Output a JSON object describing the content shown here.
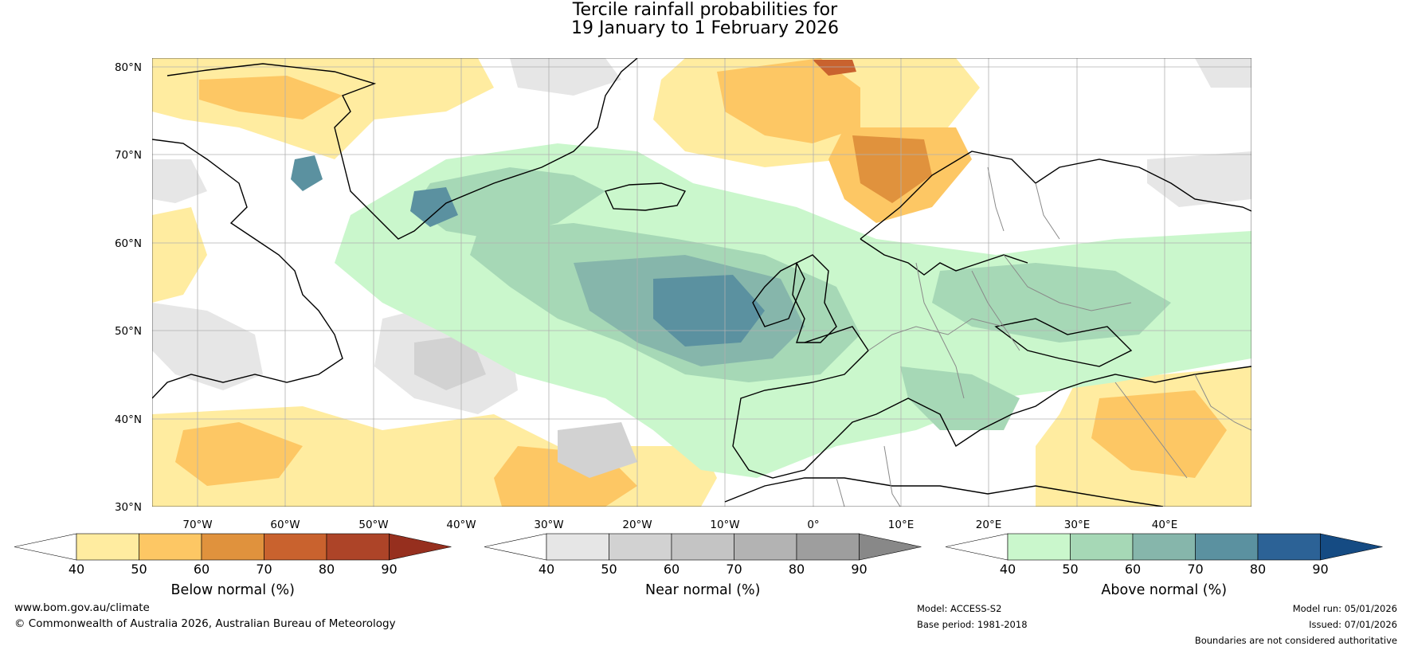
{
  "title": {
    "line1": "Tercile rainfall probabilities for",
    "line2": "19 January to 1 February 2026"
  },
  "map": {
    "lat_labels": [
      "80°N",
      "70°N",
      "60°N",
      "50°N",
      "40°N",
      "30°N"
    ],
    "lon_labels": [
      "70°W",
      "60°W",
      "50°W",
      "40°W",
      "30°W",
      "20°W",
      "10°W",
      "0°",
      "10°E",
      "20°E",
      "30°E",
      "40°E"
    ]
  },
  "colorbars": [
    {
      "label": "Below normal (%)",
      "ticks": [
        "40",
        "50",
        "60",
        "70",
        "80",
        "90"
      ],
      "colors": [
        "#ffffff",
        "#ffeca0",
        "#fdc764",
        "#e0923d",
        "#c9622e",
        "#ad4428",
        "#962f1e"
      ]
    },
    {
      "label": "Near normal (%)",
      "ticks": [
        "40",
        "50",
        "60",
        "70",
        "80",
        "90"
      ],
      "colors": [
        "#ffffff",
        "#e6e6e6",
        "#d2d2d2",
        "#c4c4c4",
        "#b3b3b3",
        "#9e9e9e",
        "#888888"
      ]
    },
    {
      "label": "Above normal (%)",
      "ticks": [
        "40",
        "50",
        "60",
        "70",
        "80",
        "90"
      ],
      "colors": [
        "#ffffff",
        "#caf7cc",
        "#a6d8b6",
        "#86b6ab",
        "#5b91a0",
        "#2c6296",
        "#154b83"
      ]
    }
  ],
  "footer": {
    "website": "www.bom.gov.au/climate",
    "copyright": "© Commonwealth of Australia 2026, Australian Bureau of Meteorology",
    "model": "Model: ACCESS-S2",
    "base_period": "Base period: 1981-2018",
    "model_run": "Model run: 05/01/2026",
    "issued": "Issued: 07/01/2026",
    "disclaimer": "Boundaries are not considered authoritative"
  }
}
